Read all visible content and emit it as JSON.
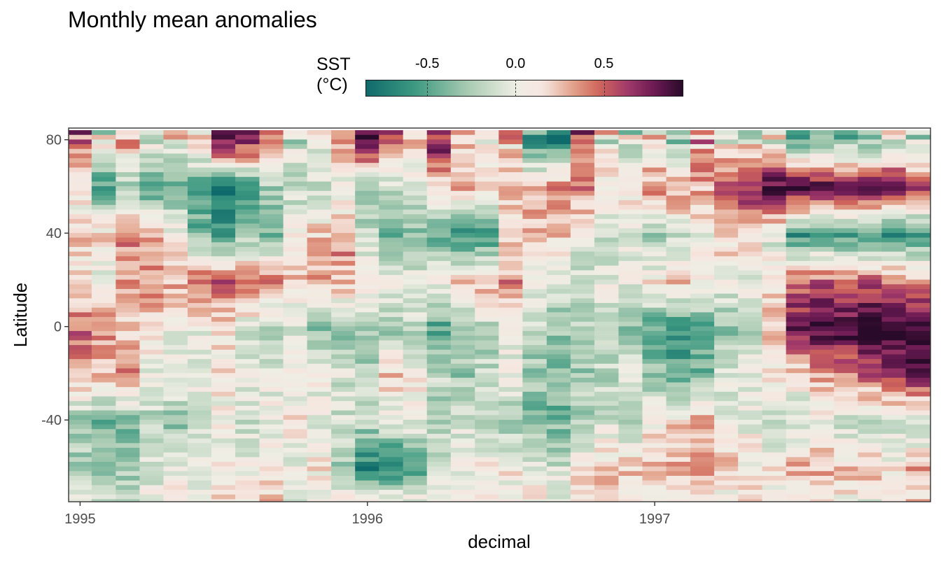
{
  "chart_data": {
    "type": "heatmap",
    "title": "Monthly mean anomalies",
    "xlabel": "decimal",
    "ylabel": "Latitude",
    "xlim": [
      1994.96,
      1997.96
    ],
    "ylim": [
      -75,
      85
    ],
    "x_ticks": [
      {
        "value": 1995,
        "label": "1995"
      },
      {
        "value": 1996,
        "label": "1996"
      },
      {
        "value": 1997,
        "label": "1997"
      }
    ],
    "y_ticks": [
      {
        "value": 80,
        "label": "80"
      },
      {
        "value": 40,
        "label": "40"
      },
      {
        "value": 0,
        "label": "0"
      },
      {
        "value": -40,
        "label": "-40"
      }
    ],
    "legend": {
      "title": "SST\n(°C)",
      "placement": "top",
      "range": [
        -0.85,
        0.95
      ],
      "ticks": [
        {
          "value": -0.5,
          "label": "-0.5"
        },
        {
          "value": 0.0,
          "label": "0.0"
        },
        {
          "value": 0.5,
          "label": "0.5"
        }
      ],
      "palette": [
        "#0f6b6b",
        "#3f9a82",
        "#a5c9b0",
        "#eeeee4",
        "#f6e6e0",
        "#e3a58e",
        "#d0665a",
        "#a23a6a",
        "#6a1a52",
        "#2a0a2a"
      ]
    },
    "months": [
      1995.0,
      1995.083,
      1995.167,
      1995.25,
      1995.333,
      1995.417,
      1995.5,
      1995.583,
      1995.667,
      1995.75,
      1995.833,
      1995.917,
      1996.0,
      1996.083,
      1996.167,
      1996.25,
      1996.333,
      1996.417,
      1996.5,
      1996.583,
      1996.667,
      1996.75,
      1996.833,
      1996.917,
      1997.0,
      1997.083,
      1997.167,
      1997.25,
      1997.333,
      1997.417,
      1997.5,
      1997.583,
      1997.667,
      1997.75,
      1997.833,
      1997.917
    ],
    "latitude_bands": [
      80,
      60,
      40,
      20,
      0,
      -20,
      -40,
      -60,
      -72
    ],
    "anomalies_by_band": [
      [
        0.4,
        0.0,
        0.3,
        -0.1,
        0.1,
        0.2,
        0.9,
        0.8,
        0.3,
        0.0,
        0.0,
        0.3,
        0.9,
        0.5,
        0.1,
        0.8,
        0.2,
        0.1,
        0.3,
        -0.5,
        -0.6,
        0.5,
        0.1,
        -0.2,
        0.0,
        -0.3,
        0.4,
        0.1,
        0.0,
        0.1,
        -0.4,
        -0.3,
        -0.5,
        -0.4,
        -0.1,
        -0.2
      ],
      [
        0.0,
        -0.5,
        -0.3,
        -0.5,
        -0.5,
        -0.5,
        -0.8,
        -0.7,
        -0.3,
        -0.2,
        -0.1,
        -0.1,
        -0.3,
        -0.2,
        0.0,
        0.1,
        0.3,
        0.2,
        0.3,
        0.2,
        0.4,
        0.4,
        0.1,
        0.2,
        0.4,
        0.4,
        0.3,
        0.5,
        0.7,
        0.9,
        0.9,
        0.9,
        0.9,
        0.85,
        0.8,
        0.6
      ],
      [
        0.2,
        0.2,
        0.4,
        0.3,
        0.1,
        -0.4,
        -0.5,
        -0.3,
        -0.4,
        0.1,
        0.2,
        0.4,
        -0.2,
        -0.4,
        -0.4,
        -0.5,
        -0.6,
        -0.6,
        0.1,
        0.3,
        0.2,
        0.0,
        -0.2,
        -0.1,
        -0.3,
        -0.1,
        0.0,
        0.2,
        0.2,
        -0.1,
        -0.6,
        -0.5,
        -0.5,
        -0.6,
        -0.6,
        -0.6
      ],
      [
        0.1,
        0.0,
        0.3,
        0.4,
        0.3,
        0.5,
        0.5,
        0.5,
        0.4,
        0.2,
        0.3,
        0.3,
        0.2,
        0.1,
        0.0,
        0.1,
        0.2,
        0.3,
        0.4,
        0.0,
        -0.1,
        -0.2,
        0.0,
        0.0,
        0.1,
        0.2,
        0.1,
        0.0,
        0.0,
        0.2,
        0.5,
        0.5,
        0.4,
        0.5,
        0.4,
        0.4
      ],
      [
        0.5,
        0.4,
        0.2,
        0.1,
        0.0,
        0.0,
        0.1,
        -0.1,
        -0.2,
        -0.1,
        -0.3,
        -0.4,
        -0.3,
        -0.3,
        -0.2,
        -0.5,
        -0.3,
        -0.2,
        0.0,
        -0.2,
        -0.3,
        -0.2,
        -0.1,
        -0.3,
        -0.5,
        -0.6,
        -0.5,
        -0.3,
        -0.2,
        0.2,
        0.8,
        0.9,
        0.9,
        0.95,
        0.95,
        0.95
      ],
      [
        0.3,
        0.2,
        0.4,
        0.0,
        0.0,
        0.0,
        0.1,
        0.0,
        0.0,
        0.0,
        0.0,
        -0.1,
        -0.2,
        0.2,
        0.1,
        -0.2,
        -0.3,
        -0.2,
        0.0,
        -0.3,
        -0.4,
        -0.3,
        -0.2,
        0.0,
        -0.3,
        -0.5,
        -0.4,
        -0.1,
        0.0,
        0.1,
        0.1,
        0.3,
        0.4,
        0.5,
        0.7,
        0.8
      ],
      [
        -0.3,
        -0.4,
        -0.4,
        -0.2,
        -0.3,
        -0.1,
        0.0,
        -0.1,
        0.0,
        0.1,
        0.0,
        -0.1,
        -0.2,
        -0.1,
        0.0,
        -0.2,
        -0.1,
        -0.2,
        -0.3,
        -0.4,
        -0.4,
        -0.2,
        -0.1,
        -0.2,
        0.1,
        0.2,
        0.3,
        0.0,
        0.0,
        -0.1,
        -0.1,
        0.0,
        -0.1,
        -0.2,
        -0.1,
        -0.2
      ],
      [
        -0.2,
        -0.3,
        -0.3,
        -0.1,
        -0.1,
        0.0,
        0.1,
        0.0,
        0.1,
        0.0,
        0.1,
        -0.3,
        -0.7,
        -0.7,
        -0.5,
        -0.1,
        0.0,
        0.1,
        0.1,
        0.0,
        -0.1,
        0.1,
        0.2,
        0.2,
        0.2,
        0.3,
        0.3,
        0.2,
        0.1,
        0.1,
        0.3,
        0.3,
        0.2,
        0.3,
        0.1,
        0.3
      ],
      [
        0.1,
        -0.2,
        -0.2,
        0.0,
        0.1,
        0.0,
        0.1,
        0.1,
        0.2,
        0.0,
        0.1,
        0.0,
        0.1,
        0.0,
        0.0,
        0.0,
        0.1,
        0.1,
        0.0,
        0.1,
        0.0,
        0.1,
        0.2,
        0.1,
        0.1,
        0.2,
        0.1,
        0.0,
        0.1,
        0.0,
        0.0,
        0.1,
        0.1,
        0.0,
        0.1,
        0.2
      ]
    ]
  }
}
